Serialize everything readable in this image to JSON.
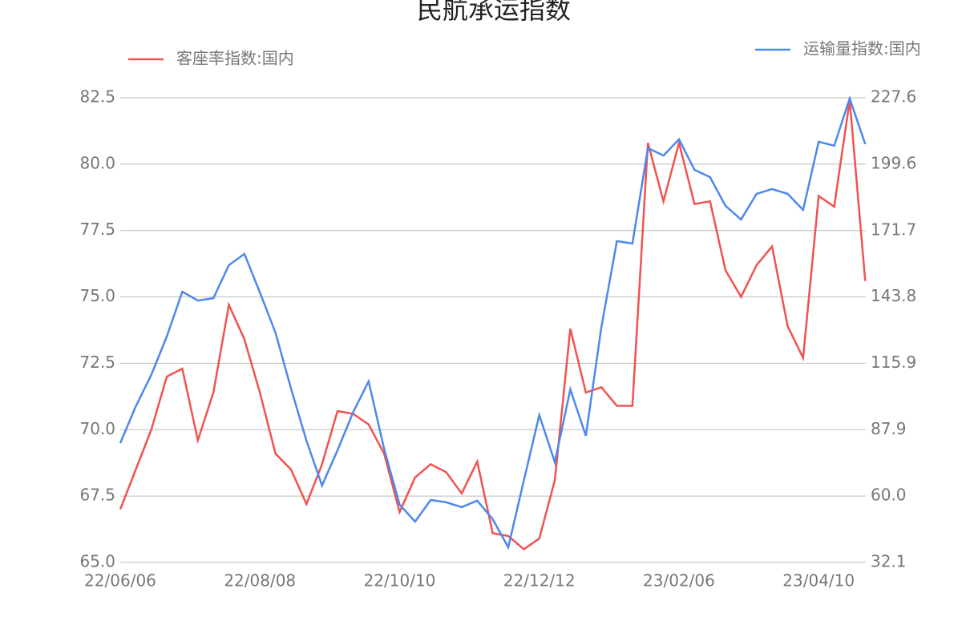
{
  "chart_data": {
    "type": "line",
    "title": "民航承运指数",
    "categories": [
      "22/06/06",
      null,
      null,
      null,
      null,
      null,
      null,
      null,
      null,
      "22/08/08",
      null,
      null,
      null,
      null,
      null,
      null,
      null,
      null,
      "22/10/10",
      null,
      null,
      null,
      null,
      null,
      null,
      null,
      null,
      "22/12/12",
      null,
      null,
      null,
      null,
      null,
      null,
      null,
      null,
      "23/02/06",
      null,
      null,
      null,
      null,
      null,
      null,
      null,
      null,
      "23/04/10",
      null,
      null,
      null
    ],
    "series": [
      {
        "name": "客座率指数:国内",
        "color": "#ef5350",
        "values": [
          67.0,
          68.5,
          70.0,
          72.0,
          72.3,
          69.6,
          71.4,
          74.7,
          73.4,
          71.4,
          69.1,
          68.5,
          67.2,
          68.7,
          70.7,
          70.6,
          70.2,
          69.1,
          66.9,
          68.2,
          68.7,
          68.4,
          67.6,
          68.8,
          66.1,
          66.0,
          65.5,
          65.9,
          68.1,
          73.8,
          71.4,
          71.6,
          70.9,
          70.9,
          80.8,
          78.6,
          80.8,
          78.5,
          78.6,
          76.0,
          75.0,
          76.2,
          76.9,
          73.9,
          72.7,
          78.8,
          78.4,
          82.4,
          75.6
        ]
      },
      {
        "name": "运输量指数:国内",
        "color": "#4e87ec",
        "axis": "y2",
        "values": [
          82.3,
          97.8,
          111.0,
          127.2,
          146.0,
          142.3,
          143.3,
          157.2,
          161.9,
          145.7,
          128.8,
          105.3,
          83.3,
          64.5,
          79.3,
          95.2,
          108.3,
          80.0,
          56.4,
          49.3,
          58.4,
          57.4,
          55.4,
          58.1,
          50.3,
          38.5,
          66.5,
          94.1,
          74.3,
          104.9,
          85.4,
          131.2,
          167.3,
          166.3,
          206.4,
          203.3,
          210.1,
          197.3,
          194.2,
          182.1,
          176.4,
          187.2,
          189.2,
          187.2,
          180.4,
          209.1,
          207.4,
          227.3,
          208.1
        ]
      }
    ],
    "ylim": [
      65,
      82.5
    ],
    "yticks": [
      {
        "value": 65,
        "label": "65.0"
      },
      67.5,
      {
        "value": 70,
        "label": "70.0"
      },
      72.5,
      {
        "value": 75,
        "label": "75.0"
      },
      77.5,
      {
        "value": 80,
        "label": "80.0"
      },
      82.5
    ],
    "y2lim": [
      32.1,
      227.6
    ],
    "y2ticks": [
      32.1,
      {
        "value": 60,
        "label": "60.0"
      },
      87.9,
      115.9,
      143.8,
      171.7,
      199.6,
      227.6
    ],
    "grid": true
  }
}
